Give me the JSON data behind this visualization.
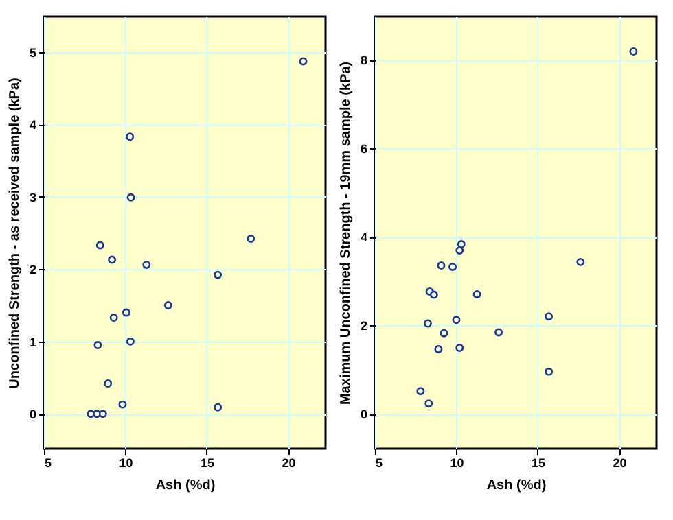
{
  "chart_data": [
    {
      "type": "scatter",
      "xlabel": "Ash (%d)",
      "ylabel": "Unconfined Strength - as received sample (kPa)",
      "xlim": [
        5,
        22.3
      ],
      "ylim": [
        -0.48,
        5.49
      ],
      "xticks": [
        5,
        10,
        15,
        20
      ],
      "yticks": [
        0,
        1,
        2,
        3,
        4,
        5
      ],
      "grid": true,
      "marker": "circle",
      "series": [
        {
          "color": "#1a3a8f",
          "x": [
            20.93,
            10.28,
            10.34,
            17.71,
            8.45,
            9.18,
            11.3,
            15.68,
            12.63,
            10.06,
            9.29,
            8.31,
            10.31,
            8.93,
            9.83,
            15.68,
            7.88,
            8.25,
            8.62
          ],
          "values": [
            4.87,
            3.83,
            2.99,
            2.42,
            2.33,
            2.13,
            2.06,
            1.92,
            1.5,
            1.4,
            1.33,
            0.95,
            1.0,
            0.42,
            0.13,
            0.09,
            0,
            0,
            0
          ]
        }
      ]
    },
    {
      "type": "scatter",
      "xlabel": "Ash (%d)",
      "ylabel": "Maximum Unconfined Strength - 19mm sample (kPa)",
      "xlim": [
        5,
        22.3
      ],
      "ylim": [
        -0.79,
        8.98
      ],
      "xticks": [
        5,
        10,
        15,
        20
      ],
      "yticks": [
        0,
        2,
        4,
        6,
        8
      ],
      "grid": true,
      "marker": "circle",
      "series": [
        {
          "color": "#1a3a8f",
          "x": [
            20.88,
            10.31,
            10.2,
            9.07,
            9.77,
            17.63,
            8.36,
            8.62,
            11.27,
            15.68,
            8.25,
            10.0,
            9.24,
            12.6,
            8.9,
            10.2,
            15.68,
            7.8,
            8.3
          ],
          "values": [
            8.19,
            3.83,
            3.69,
            3.35,
            3.32,
            3.43,
            2.76,
            2.69,
            2.7,
            2.2,
            2.04,
            2.12,
            1.82,
            1.84,
            1.46,
            1.49,
            0.95,
            0.51,
            0.23
          ]
        }
      ]
    }
  ]
}
